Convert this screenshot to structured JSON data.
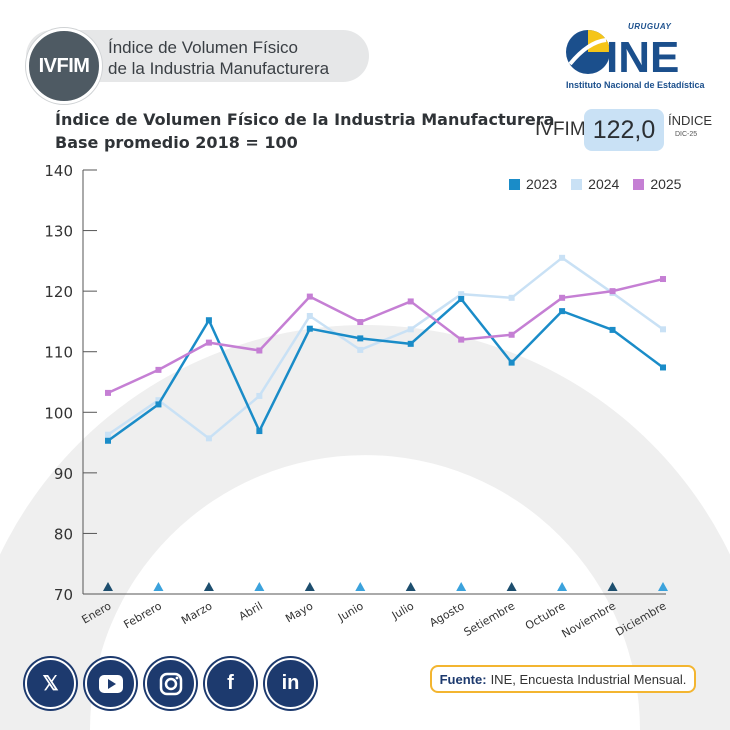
{
  "header": {
    "badge": "IVFIM",
    "title_line1": "Índice de Volumen Físico",
    "title_line2": "de la Industria Manufacturera"
  },
  "logo": {
    "country": "URUGUAY",
    "name": "INE",
    "subtitle": "Instituto Nacional de Estadística",
    "icon": "ine-logo-icon"
  },
  "kpi": {
    "label": "IVFIM",
    "value": "122,0",
    "side_label": "ÍNDICE",
    "period": "DIC-25"
  },
  "social": [
    {
      "name": "x-icon"
    },
    {
      "name": "youtube-icon"
    },
    {
      "name": "instagram-icon"
    },
    {
      "name": "facebook-icon"
    },
    {
      "name": "linkedin-icon"
    }
  ],
  "source": {
    "label": "Fuente:",
    "text": "INE, Encuesta Industrial Mensual."
  },
  "colors": {
    "2023": "#1a8cc8",
    "2024": "#c9e1f5",
    "2025": "#c57fd4",
    "marker_dark": "#1d4e6e",
    "marker_light": "#3ba2dc"
  },
  "chart_data": {
    "type": "line",
    "title": "Índice de Volumen Físico de la Industria Manufacturera",
    "subtitle": "Base promedio 2018 = 100",
    "categories": [
      "Enero",
      "Febrero",
      "Marzo",
      "Abril",
      "Mayo",
      "Junio",
      "Julio",
      "Agosto",
      "Setiembre",
      "Octubre",
      "Noviembre",
      "Diciembre"
    ],
    "ylim": [
      70,
      140
    ],
    "yticks": [
      "140",
      "130",
      "120",
      "110",
      "100",
      "90",
      "80",
      "70"
    ],
    "legend_position": "top-right",
    "series": [
      {
        "name": "2023",
        "values": [
          95.3,
          101.3,
          115.2,
          96.9,
          113.8,
          112.2,
          111.3,
          118.7,
          108.2,
          116.7,
          113.6,
          107.4
        ]
      },
      {
        "name": "2024",
        "values": [
          96.3,
          102.0,
          95.7,
          102.7,
          115.9,
          110.3,
          113.7,
          119.5,
          118.9,
          125.5,
          119.7,
          113.7
        ]
      },
      {
        "name": "2025",
        "values": [
          103.2,
          107.0,
          111.5,
          110.2,
          119.1,
          114.9,
          118.3,
          112.0,
          112.8,
          118.9,
          120.0,
          122.0
        ]
      }
    ]
  }
}
